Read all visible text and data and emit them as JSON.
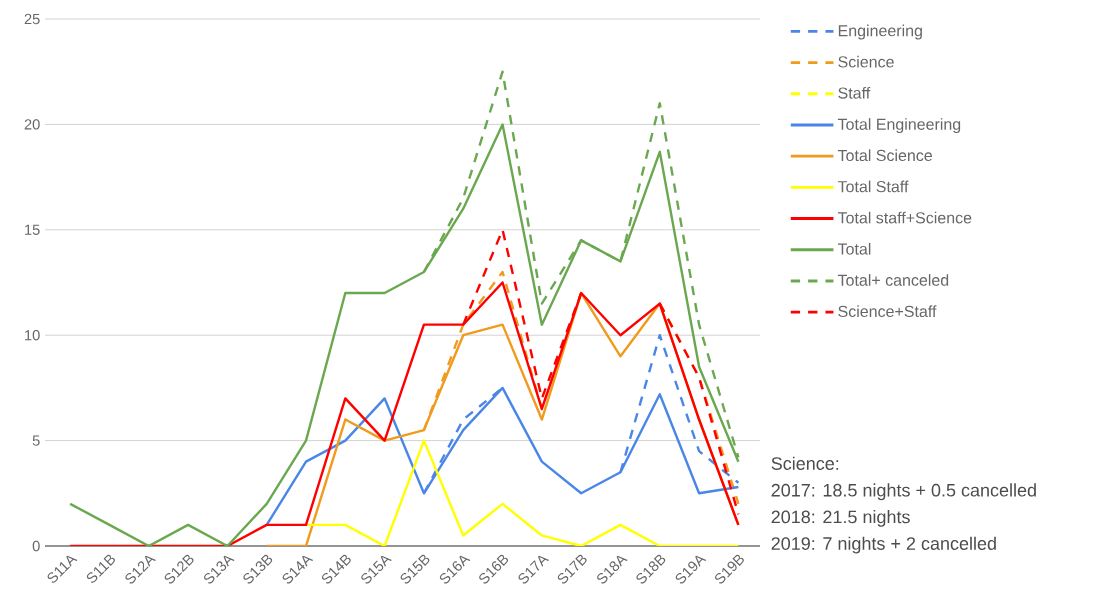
{
  "chart_data": {
    "type": "line",
    "categories": [
      "S11A",
      "S11B",
      "S12A",
      "S12B",
      "S13A",
      "S13B",
      "S14A",
      "S14B",
      "S15A",
      "S15B",
      "S16A",
      "S16B",
      "S17A",
      "S17B",
      "S18A",
      "S18B",
      "S19A",
      "S19B"
    ],
    "ylim": [
      0,
      25
    ],
    "yticks": [
      0,
      5,
      10,
      15,
      20,
      25
    ],
    "grid": "y",
    "legend": "right",
    "marker": "none",
    "series": [
      {
        "name": "Engineering",
        "color": "#4a86e8",
        "line_style": "dashed",
        "values": [
          null,
          null,
          null,
          null,
          null,
          null,
          null,
          null,
          null,
          2.5,
          6,
          7.5,
          null,
          null,
          3.5,
          10,
          4.5,
          3
        ]
      },
      {
        "name": "Science",
        "color": "#f09a1e",
        "line_style": "dashed",
        "values": [
          null,
          null,
          null,
          null,
          null,
          null,
          null,
          null,
          null,
          5.5,
          10.5,
          13,
          6.5,
          12,
          null,
          11.5,
          8,
          2
        ]
      },
      {
        "name": "Staff",
        "color": "#ffff00",
        "line_style": "dashed",
        "values": [
          null,
          null,
          null,
          null,
          null,
          null,
          null,
          null,
          null,
          null,
          null,
          null,
          null,
          null,
          null,
          null,
          null,
          null
        ]
      },
      {
        "name": "Total Engineering",
        "color": "#4a86e8",
        "line_style": "solid",
        "values": [
          null,
          null,
          null,
          null,
          null,
          1,
          4,
          5,
          7,
          2.5,
          5.5,
          7.5,
          4,
          2.5,
          3.5,
          7.2,
          2.5,
          2.8
        ]
      },
      {
        "name": "Total Science",
        "color": "#f09a1e",
        "line_style": "solid",
        "values": [
          null,
          null,
          null,
          null,
          null,
          0,
          0,
          6,
          5,
          5.5,
          10,
          10.5,
          6,
          12,
          9,
          11.5,
          6,
          1
        ]
      },
      {
        "name": "Total Staff",
        "color": "#ffff00",
        "line_style": "solid",
        "values": [
          null,
          null,
          null,
          null,
          null,
          null,
          1,
          1,
          0,
          5,
          0.5,
          2,
          0.5,
          0,
          1,
          0,
          0,
          0
        ]
      },
      {
        "name": "Total staff+Science",
        "color": "#ff0000",
        "line_style": "solid",
        "values": [
          0,
          0,
          0,
          0,
          0,
          1,
          1,
          7,
          5,
          10.5,
          10.5,
          12.5,
          6.5,
          12,
          10,
          11.5,
          6,
          1
        ]
      },
      {
        "name": "Total",
        "color": "#6aa84f",
        "line_style": "solid",
        "values": [
          2,
          1,
          0,
          1,
          0,
          2,
          5,
          12,
          12,
          13,
          16,
          20,
          10.5,
          14.5,
          13.5,
          18.7,
          8.5,
          4
        ]
      },
      {
        "name": "Total+ canceled",
        "color": "#6aa84f",
        "line_style": "dashed",
        "values": [
          null,
          null,
          null,
          null,
          null,
          null,
          null,
          null,
          null,
          13,
          16.5,
          22.5,
          11.5,
          14.5,
          13.5,
          21,
          10.5,
          4.2
        ]
      },
      {
        "name": "Science+Staff",
        "color": "#ff0000",
        "line_style": "dashed",
        "values": [
          null,
          null,
          null,
          null,
          null,
          null,
          null,
          null,
          null,
          null,
          10.5,
          15,
          7,
          12,
          null,
          11.5,
          8,
          1.5
        ]
      }
    ],
    "annotations": [
      "Science:",
      "2017: 18.5 nights + 0.5 cancelled",
      "2018: 21.5 nights",
      "2019: 7 nights + 2 cancelled"
    ]
  }
}
